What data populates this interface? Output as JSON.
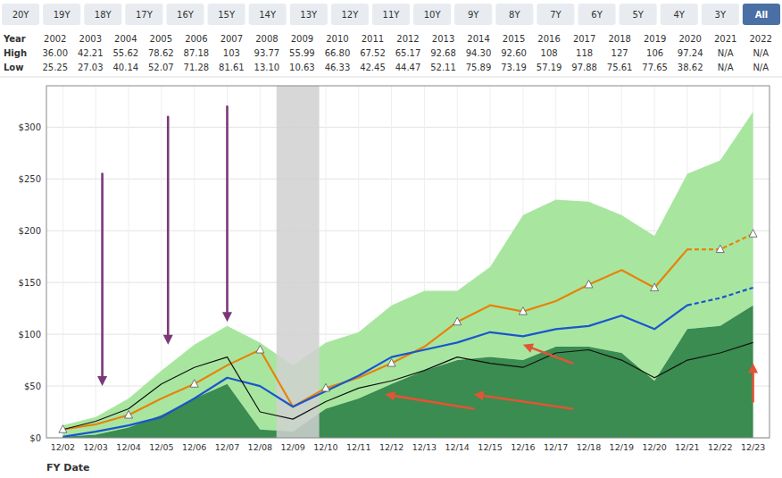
{
  "chart_data": {
    "type": "line",
    "tabs": [
      "20Y",
      "19Y",
      "18Y",
      "17Y",
      "16Y",
      "15Y",
      "14Y",
      "13Y",
      "12Y",
      "11Y",
      "10Y",
      "9Y",
      "8Y",
      "7Y",
      "6Y",
      "5Y",
      "4Y",
      "3Y",
      "All"
    ],
    "active_tab": "All",
    "table": {
      "rows": [
        {
          "label": "Year",
          "values": [
            "2002",
            "2003",
            "2004",
            "2005",
            "2006",
            "2007",
            "2008",
            "2009",
            "2010",
            "2011",
            "2012",
            "2013",
            "2014",
            "2015",
            "2016",
            "2017",
            "2018",
            "2019",
            "2020",
            "2021",
            "2022"
          ]
        },
        {
          "label": "High",
          "values": [
            "36.00",
            "42.21",
            "55.62",
            "78.62",
            "87.18",
            "103",
            "93.77",
            "55.99",
            "66.80",
            "67.52",
            "65.17",
            "92.68",
            "94.30",
            "92.60",
            "108",
            "118",
            "127",
            "106",
            "97.24",
            "N/A",
            "N/A"
          ]
        },
        {
          "label": "Low",
          "values": [
            "25.25",
            "27.03",
            "40.14",
            "52.07",
            "71.28",
            "81.61",
            "13.10",
            "10.63",
            "46.33",
            "42.45",
            "44.47",
            "52.11",
            "75.89",
            "73.19",
            "57.19",
            "97.88",
            "75.61",
            "77.65",
            "38.62",
            "N/A",
            "N/A"
          ]
        }
      ]
    },
    "x_label": "FY Date",
    "categories": [
      "12/02",
      "12/03",
      "12/04",
      "12/05",
      "12/06",
      "12/07",
      "12/08",
      "12/09",
      "12/10",
      "12/11",
      "12/12",
      "12/13",
      "12/14",
      "12/15",
      "12/16",
      "12/17",
      "12/18",
      "12/19",
      "12/20",
      "12/21",
      "12/22",
      "12/23"
    ],
    "series": [
      {
        "type": "band",
        "color": "#a8e6a0",
        "values": [
          12,
          20,
          38,
          65,
          90,
          108,
          92,
          70,
          92,
          102,
          128,
          142,
          142,
          165,
          215,
          230,
          228,
          215,
          195,
          255,
          268,
          315
        ]
      },
      {
        "type": "area",
        "color": "#3a8c50",
        "values": [
          1,
          3,
          10,
          22,
          38,
          52,
          8,
          6,
          28,
          38,
          52,
          65,
          75,
          78,
          75,
          88,
          88,
          82,
          55,
          105,
          108,
          128
        ]
      },
      {
        "type": "line",
        "color": "#e8820a",
        "line_style": "solid",
        "dashed_from": "12/21",
        "marker": "triangle",
        "marker_at": [
          "12/02",
          "12/04",
          "12/06",
          "12/08",
          "12/10",
          "12/12",
          "12/14",
          "12/16",
          "12/18",
          "12/20",
          "12/22",
          "12/23"
        ],
        "values": [
          8,
          13,
          22,
          38,
          52,
          70,
          85,
          30,
          48,
          58,
          72,
          88,
          112,
          128,
          122,
          132,
          148,
          162,
          145,
          182,
          182,
          197
        ]
      },
      {
        "type": "line",
        "color": "#1a56cc",
        "line_style": "solid",
        "dashed_from": "12/21",
        "values": [
          1,
          6,
          12,
          20,
          38,
          58,
          50,
          30,
          45,
          60,
          78,
          85,
          92,
          102,
          98,
          105,
          108,
          118,
          105,
          128,
          135,
          145
        ]
      },
      {
        "type": "line",
        "color": "#111111",
        "line_style": "solid",
        "values": [
          8,
          16,
          28,
          52,
          68,
          78,
          25,
          18,
          35,
          48,
          55,
          65,
          78,
          72,
          68,
          82,
          85,
          75,
          58,
          75,
          82,
          92
        ]
      }
    ],
    "shaded_x": [
      6.5,
      7.8
    ],
    "arrows": [
      {
        "x": [
          1.2,
          1.2
        ],
        "y": [
          255,
          50
        ],
        "color": "#7b3878"
      },
      {
        "x": [
          3.2,
          3.2
        ],
        "y": [
          310,
          90
        ],
        "color": "#7b3878"
      },
      {
        "x": [
          5.0,
          5.0
        ],
        "y": [
          320,
          112
        ],
        "color": "#7b3878"
      },
      {
        "x": [
          12.5,
          9.8
        ],
        "y": [
          28,
          42
        ],
        "color": "#e05535"
      },
      {
        "x": [
          15.5,
          12.5
        ],
        "y": [
          28,
          42
        ],
        "color": "#e05535"
      },
      {
        "x": [
          15.5,
          14.0
        ],
        "y": [
          72,
          90
        ],
        "color": "#e05535"
      },
      {
        "x": [
          21.0,
          21.0
        ],
        "y": [
          35,
          72
        ],
        "color": "#e05535"
      }
    ],
    "ylim": [
      0,
      340
    ],
    "yticks": [
      {
        "value": 0,
        "label": "$0"
      },
      {
        "value": 50,
        "label": "$50"
      },
      {
        "value": 100,
        "label": "$100"
      },
      {
        "value": 150,
        "label": "$150"
      },
      {
        "value": 200,
        "label": "$200"
      },
      {
        "value": 250,
        "label": "$250"
      },
      {
        "value": 300,
        "label": "$300"
      }
    ],
    "grid": true
  }
}
